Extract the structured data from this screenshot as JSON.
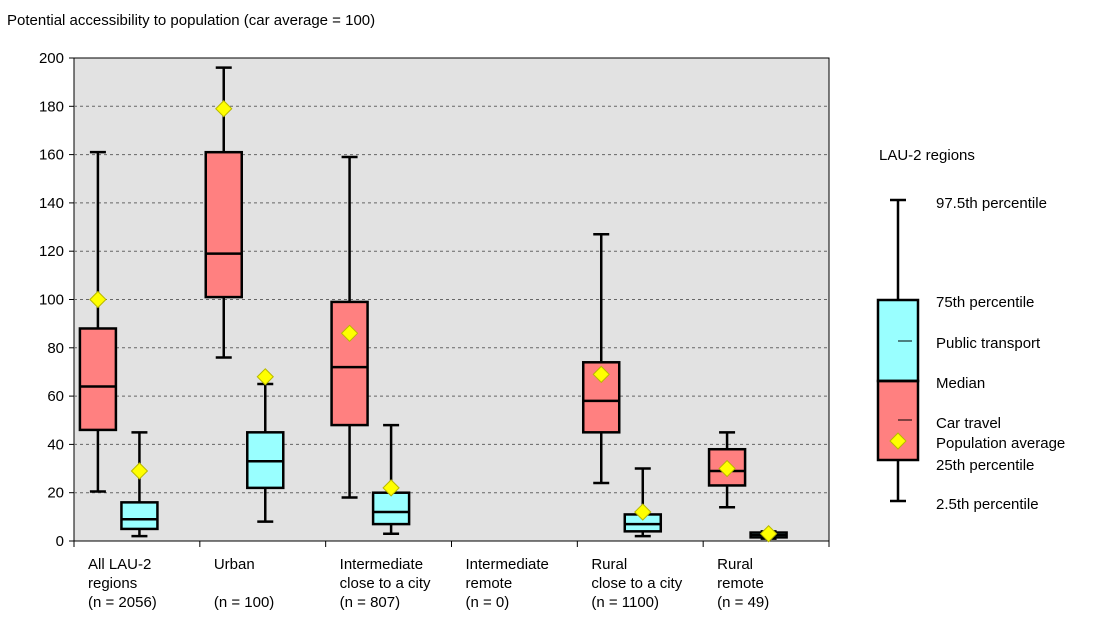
{
  "chart_data": {
    "type": "boxplot",
    "title": "Potential accessibility to population (car average = 100)",
    "ylim": [
      0,
      200
    ],
    "y_ticks": [
      0,
      20,
      40,
      60,
      80,
      100,
      120,
      140,
      160,
      180,
      200
    ],
    "grid": true,
    "plot_background": "#e2e2e2",
    "categories": [
      {
        "label_lines": [
          "All LAU-2",
          "regions",
          "(n = 2056)"
        ],
        "boxes": [
          {
            "series": "Car travel",
            "p2_5": 20.5,
            "p25": 46,
            "median": 64,
            "p75": 88,
            "p97_5": 161,
            "mean": 100
          },
          {
            "series": "Public transport",
            "p2_5": 2,
            "p25": 5,
            "median": 9,
            "p75": 16,
            "p97_5": 45,
            "mean": 29
          }
        ]
      },
      {
        "label_lines": [
          "Urban",
          "",
          "(n =  100)"
        ],
        "boxes": [
          {
            "series": "Car travel",
            "p2_5": 76,
            "p25": 101,
            "median": 119,
            "p75": 161,
            "p97_5": 196,
            "mean": 179
          },
          {
            "series": "Public transport",
            "p2_5": 8,
            "p25": 22,
            "median": 33,
            "p75": 45,
            "p97_5": 65,
            "mean": 68
          }
        ]
      },
      {
        "label_lines": [
          "Intermediate",
          "close to a city",
          "(n =  807)"
        ],
        "boxes": [
          {
            "series": "Car travel",
            "p2_5": 18,
            "p25": 48,
            "median": 72,
            "p75": 99,
            "p97_5": 159,
            "mean": 86
          },
          {
            "series": "Public transport",
            "p2_5": 3,
            "p25": 7,
            "median": 12,
            "p75": 20,
            "p97_5": 48,
            "mean": 22
          }
        ]
      },
      {
        "label_lines": [
          "Intermediate",
          "remote",
          "(n =     0)"
        ],
        "boxes": []
      },
      {
        "label_lines": [
          "Rural",
          "close to a city",
          "(n = 1100)"
        ],
        "boxes": [
          {
            "series": "Car travel",
            "p2_5": 24,
            "p25": 45,
            "median": 58,
            "p75": 74,
            "p97_5": 127,
            "mean": 69
          },
          {
            "series": "Public transport",
            "p2_5": 2,
            "p25": 4,
            "median": 7,
            "p75": 11,
            "p97_5": 30,
            "mean": 12
          }
        ]
      },
      {
        "label_lines": [
          "Rural",
          "remote",
          "(n =   49)"
        ],
        "boxes": [
          {
            "series": "Car travel",
            "p2_5": 14,
            "p25": 23,
            "median": 29,
            "p75": 38,
            "p97_5": 45,
            "mean": 30
          },
          {
            "series": "Public transport",
            "p2_5": 1,
            "p25": 1.5,
            "median": 2.5,
            "p75": 3.5,
            "p97_5": 4,
            "mean": 3
          }
        ]
      }
    ],
    "series_colors": {
      "Car travel": "#ff8080",
      "Public transport": "#99ffff"
    },
    "mean_marker_color": "#ffff00"
  },
  "legend": {
    "title": "LAU-2 regions",
    "labels": {
      "p97_5": "97.5th percentile",
      "p75": "75th percentile",
      "public_transport": "Public transport",
      "median": "Median",
      "car_travel": "Car travel",
      "population_average": "Population average",
      "p25": "25th percentile",
      "p2_5": "2.5th percentile"
    }
  }
}
